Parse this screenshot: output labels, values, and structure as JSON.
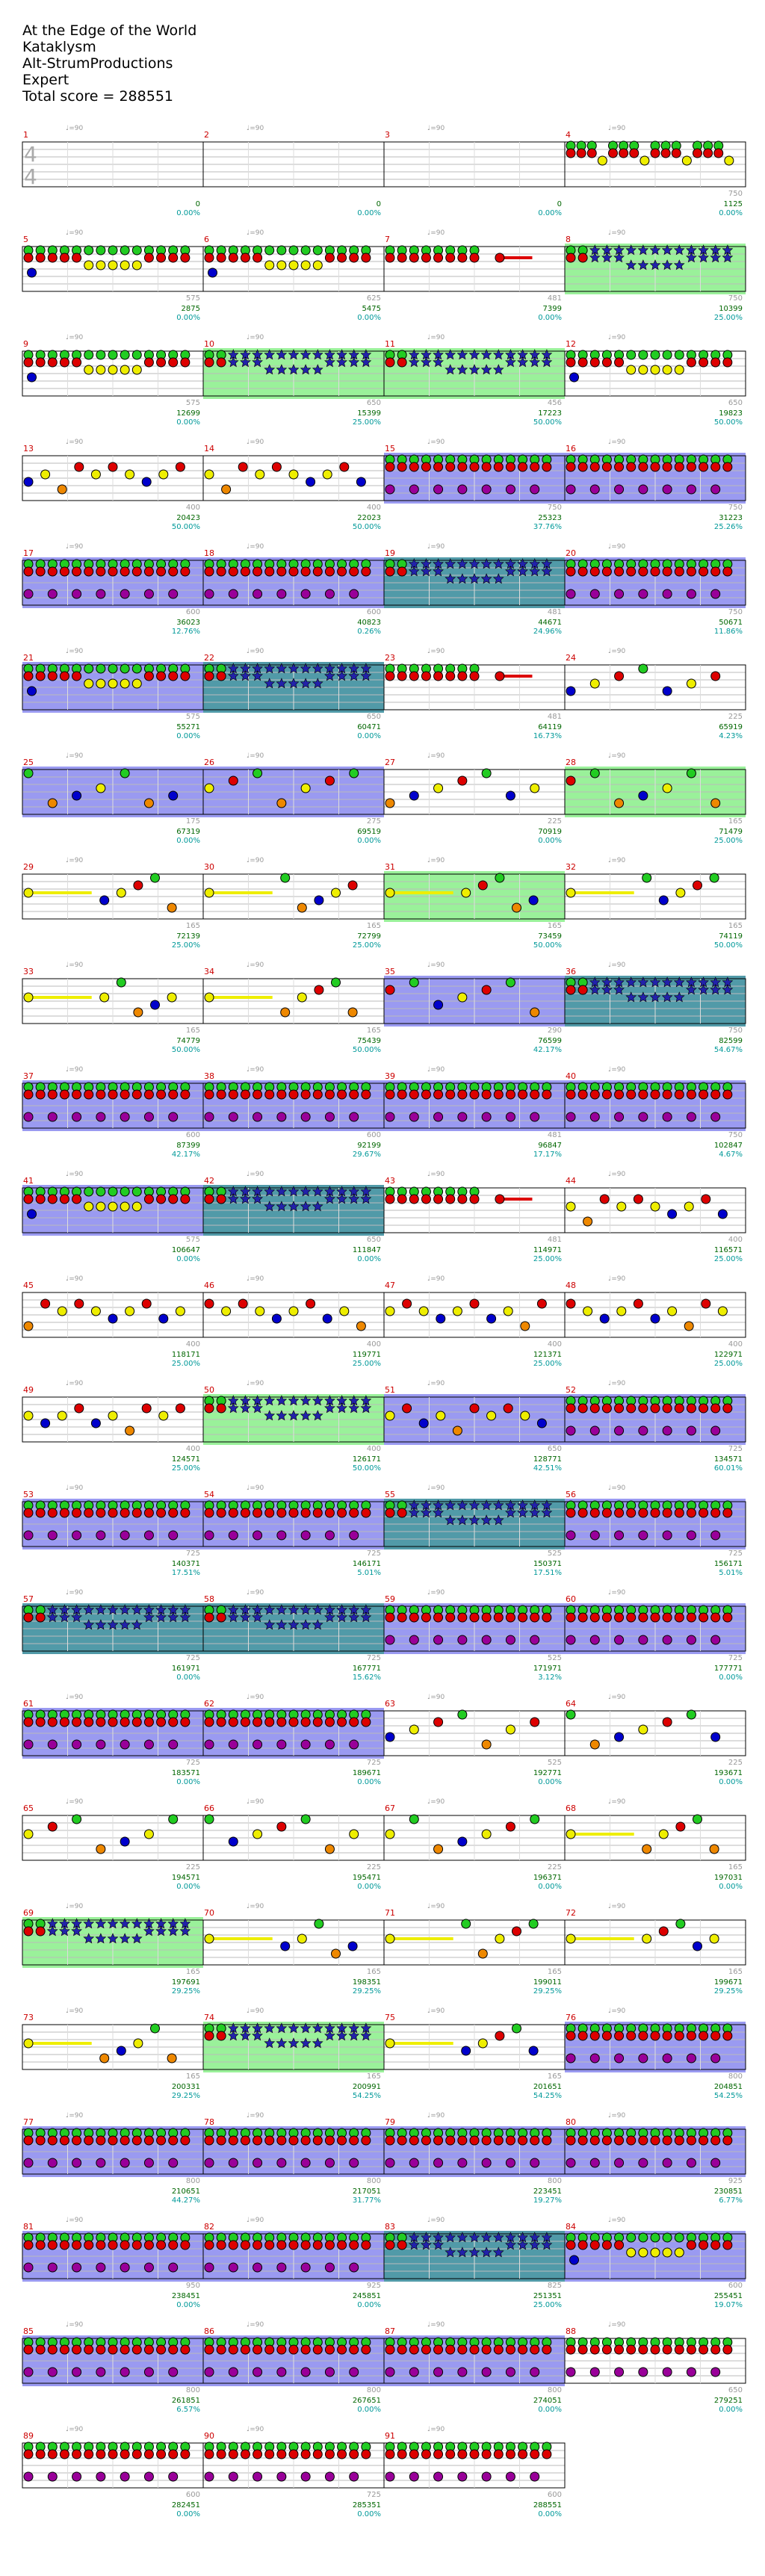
{
  "header": {
    "song": "At the Edge of the World",
    "artist": "Kataklysm",
    "charter": "Alt-StrumProductions",
    "difficulty": "Expert",
    "total_score_text": "Total score = 288551"
  },
  "colors": {
    "green": "#22cc22",
    "red": "#dd0000",
    "yellow": "#eeee00",
    "blue": "#0000cc",
    "orange": "#ee8800",
    "purple": "#990099",
    "star": "#2222aa",
    "sp_zone": "#88ee88",
    "solo_zone": "#8888ee",
    "overlap_zone": "#338899",
    "sustain": "#eeee00",
    "measure_num": "#cc0000",
    "score_text": "#006600",
    "percent_text": "#009999",
    "tempo_text": "#999999"
  },
  "time_signature": [
    "4",
    "4"
  ],
  "tempo_label": "♩=90",
  "rows": [
    {
      "measures": [
        {
          "num": "1",
          "score": "0",
          "pct": "0.00%",
          "bpm": "",
          "pattern": "empty"
        },
        {
          "num": "2",
          "score": "0",
          "pct": "0.00%",
          "bpm": "",
          "pattern": "empty"
        },
        {
          "num": "3",
          "score": "0",
          "pct": "0.00%",
          "bpm": "",
          "pattern": "empty"
        },
        {
          "num": "4",
          "score": "1125",
          "pct": "0.00%",
          "bpm": "750",
          "pattern": "intro"
        }
      ]
    },
    {
      "measures": [
        {
          "num": "5",
          "score": "2875",
          "pct": "0.00%",
          "bpm": "575",
          "pattern": "riff"
        },
        {
          "num": "6",
          "score": "5475",
          "pct": "0.00%",
          "bpm": "625",
          "pattern": "riff"
        },
        {
          "num": "7",
          "score": "7399",
          "pct": "0.00%",
          "bpm": "481",
          "pattern": "slide"
        },
        {
          "num": "8",
          "score": "10399",
          "pct": "25.00%",
          "bpm": "750",
          "pattern": "stars",
          "zone": "sp"
        }
      ]
    },
    {
      "measures": [
        {
          "num": "9",
          "score": "12699",
          "pct": "0.00%",
          "bpm": "575",
          "pattern": "riff"
        },
        {
          "num": "10",
          "score": "15399",
          "pct": "25.00%",
          "bpm": "650",
          "pattern": "stars",
          "zone": "sp"
        },
        {
          "num": "11",
          "score": "17223",
          "pct": "50.00%",
          "bpm": "456",
          "pattern": "stars",
          "zone": "sp"
        },
        {
          "num": "12",
          "score": "19823",
          "pct": "50.00%",
          "bpm": "650",
          "pattern": "riff"
        }
      ]
    },
    {
      "measures": [
        {
          "num": "13",
          "score": "20423",
          "pct": "50.00%",
          "bpm": "400",
          "pattern": "low"
        },
        {
          "num": "14",
          "score": "22023",
          "pct": "50.00%",
          "bpm": "400",
          "pattern": "low"
        },
        {
          "num": "15",
          "score": "25323",
          "pct": "37.76%",
          "bpm": "750",
          "pattern": "chords",
          "zone": "solo"
        },
        {
          "num": "16",
          "score": "31223",
          "pct": "25.26%",
          "bpm": "750",
          "pattern": "chords",
          "zone": "solo"
        }
      ]
    },
    {
      "measures": [
        {
          "num": "17",
          "score": "36023",
          "pct": "12.76%",
          "bpm": "600",
          "pattern": "chords",
          "zone": "solo"
        },
        {
          "num": "18",
          "score": "40823",
          "pct": "0.26%",
          "bpm": "600",
          "pattern": "chords",
          "zone": "solo"
        },
        {
          "num": "19",
          "score": "44671",
          "pct": "24.96%",
          "bpm": "481",
          "pattern": "stars",
          "zone": "overlap"
        },
        {
          "num": "20",
          "score": "50671",
          "pct": "11.86%",
          "bpm": "750",
          "pattern": "chords",
          "zone": "solo"
        }
      ]
    },
    {
      "measures": [
        {
          "num": "21",
          "score": "55271",
          "pct": "0.00%",
          "bpm": "575",
          "pattern": "riff",
          "zone": "solo"
        },
        {
          "num": "22",
          "score": "60471",
          "pct": "0.00%",
          "bpm": "650",
          "pattern": "stars",
          "zone": "overlap"
        },
        {
          "num": "23",
          "score": "64119",
          "pct": "16.73%",
          "bpm": "481",
          "pattern": "slide"
        },
        {
          "num": "24",
          "score": "65919",
          "pct": "4.23%",
          "bpm": "225",
          "pattern": "sparse"
        }
      ]
    },
    {
      "measures": [
        {
          "num": "25",
          "score": "67319",
          "pct": "0.00%",
          "bpm": "175",
          "pattern": "sparse",
          "zone": "solo"
        },
        {
          "num": "26",
          "score": "69519",
          "pct": "0.00%",
          "bpm": "275",
          "pattern": "sparse",
          "zone": "solo"
        },
        {
          "num": "27",
          "score": "70919",
          "pct": "0.00%",
          "bpm": "225",
          "pattern": "sparse"
        },
        {
          "num": "28",
          "score": "71479",
          "pct": "25.00%",
          "bpm": "165",
          "pattern": "sparse",
          "zone": "sp"
        }
      ]
    },
    {
      "measures": [
        {
          "num": "29",
          "score": "72139",
          "pct": "25.00%",
          "bpm": "165",
          "pattern": "sustain"
        },
        {
          "num": "30",
          "score": "72799",
          "pct": "25.00%",
          "bpm": "165",
          "pattern": "sustain"
        },
        {
          "num": "31",
          "score": "73459",
          "pct": "50.00%",
          "bpm": "165",
          "pattern": "sustain",
          "zone": "sp"
        },
        {
          "num": "32",
          "score": "74119",
          "pct": "50.00%",
          "bpm": "165",
          "pattern": "sustain"
        }
      ]
    },
    {
      "measures": [
        {
          "num": "33",
          "score": "74779",
          "pct": "50.00%",
          "bpm": "165",
          "pattern": "sustain"
        },
        {
          "num": "34",
          "score": "75439",
          "pct": "50.00%",
          "bpm": "165",
          "pattern": "sustain"
        },
        {
          "num": "35",
          "score": "76599",
          "pct": "42.17%",
          "bpm": "290",
          "pattern": "sparse",
          "zone": "solo"
        },
        {
          "num": "36",
          "score": "82599",
          "pct": "54.67%",
          "bpm": "750",
          "pattern": "stars",
          "zone": "overlap"
        }
      ]
    },
    {
      "measures": [
        {
          "num": "37",
          "score": "87399",
          "pct": "42.17%",
          "bpm": "600",
          "pattern": "chords",
          "zone": "solo"
        },
        {
          "num": "38",
          "score": "92199",
          "pct": "29.67%",
          "bpm": "600",
          "pattern": "chords",
          "zone": "solo"
        },
        {
          "num": "39",
          "score": "96847",
          "pct": "17.17%",
          "bpm": "481",
          "pattern": "chords",
          "zone": "solo"
        },
        {
          "num": "40",
          "score": "102847",
          "pct": "4.67%",
          "bpm": "750",
          "pattern": "chords",
          "zone": "solo"
        }
      ]
    },
    {
      "measures": [
        {
          "num": "41",
          "score": "106647",
          "pct": "0.00%",
          "bpm": "575",
          "pattern": "riff",
          "zone": "solo"
        },
        {
          "num": "42",
          "score": "111847",
          "pct": "0.00%",
          "bpm": "650",
          "pattern": "stars",
          "zone": "overlap"
        },
        {
          "num": "43",
          "score": "114971",
          "pct": "25.00%",
          "bpm": "481",
          "pattern": "slide"
        },
        {
          "num": "44",
          "score": "116571",
          "pct": "25.00%",
          "bpm": "400",
          "pattern": "low"
        }
      ]
    },
    {
      "measures": [
        {
          "num": "45",
          "score": "118171",
          "pct": "25.00%",
          "bpm": "400",
          "pattern": "low"
        },
        {
          "num": "46",
          "score": "119771",
          "pct": "25.00%",
          "bpm": "400",
          "pattern": "low"
        },
        {
          "num": "47",
          "score": "121371",
          "pct": "25.00%",
          "bpm": "400",
          "pattern": "low"
        },
        {
          "num": "48",
          "score": "122971",
          "pct": "25.00%",
          "bpm": "400",
          "pattern": "low"
        }
      ]
    },
    {
      "measures": [
        {
          "num": "49",
          "score": "124571",
          "pct": "25.00%",
          "bpm": "400",
          "pattern": "low"
        },
        {
          "num": "50",
          "score": "126171",
          "pct": "50.00%",
          "bpm": "400",
          "pattern": "stars",
          "zone": "sp"
        },
        {
          "num": "51",
          "score": "128771",
          "pct": "42.51%",
          "bpm": "650",
          "pattern": "low",
          "zone": "solo"
        },
        {
          "num": "52",
          "score": "134571",
          "pct": "60.01%",
          "bpm": "725",
          "pattern": "chords",
          "zone": "solo"
        }
      ]
    },
    {
      "measures": [
        {
          "num": "53",
          "score": "140371",
          "pct": "17.51%",
          "bpm": "725",
          "pattern": "chords",
          "zone": "solo"
        },
        {
          "num": "54",
          "score": "146171",
          "pct": "5.01%",
          "bpm": "725",
          "pattern": "chords",
          "zone": "solo"
        },
        {
          "num": "55",
          "score": "150371",
          "pct": "17.51%",
          "bpm": "525",
          "pattern": "stars",
          "zone": "overlap"
        },
        {
          "num": "56",
          "score": "156171",
          "pct": "5.01%",
          "bpm": "725",
          "pattern": "chords",
          "zone": "solo"
        }
      ]
    },
    {
      "measures": [
        {
          "num": "57",
          "score": "161971",
          "pct": "0.00%",
          "bpm": "725",
          "pattern": "stars",
          "zone": "overlap"
        },
        {
          "num": "58",
          "score": "167771",
          "pct": "15.62%",
          "bpm": "725",
          "pattern": "stars",
          "zone": "overlap"
        },
        {
          "num": "59",
          "score": "171971",
          "pct": "3.12%",
          "bpm": "525",
          "pattern": "chords",
          "zone": "solo"
        },
        {
          "num": "60",
          "score": "177771",
          "pct": "0.00%",
          "bpm": "725",
          "pattern": "chords",
          "zone": "solo"
        }
      ]
    },
    {
      "measures": [
        {
          "num": "61",
          "score": "183571",
          "pct": "0.00%",
          "bpm": "725",
          "pattern": "chords",
          "zone": "solo"
        },
        {
          "num": "62",
          "score": "189671",
          "pct": "0.00%",
          "bpm": "725",
          "pattern": "chords",
          "zone": "solo"
        },
        {
          "num": "63",
          "score": "192771",
          "pct": "0.00%",
          "bpm": "525",
          "pattern": "sparse"
        },
        {
          "num": "64",
          "score": "193671",
          "pct": "0.00%",
          "bpm": "225",
          "pattern": "sparse"
        }
      ]
    },
    {
      "measures": [
        {
          "num": "65",
          "score": "194571",
          "pct": "0.00%",
          "bpm": "225",
          "pattern": "sparse"
        },
        {
          "num": "66",
          "score": "195471",
          "pct": "0.00%",
          "bpm": "225",
          "pattern": "sparse"
        },
        {
          "num": "67",
          "score": "196371",
          "pct": "0.00%",
          "bpm": "225",
          "pattern": "sparse"
        },
        {
          "num": "68",
          "score": "197031",
          "pct": "0.00%",
          "bpm": "165",
          "pattern": "sustain"
        }
      ]
    },
    {
      "measures": [
        {
          "num": "69",
          "score": "197691",
          "pct": "29.25%",
          "bpm": "165",
          "pattern": "stars",
          "zone": "sp"
        },
        {
          "num": "70",
          "score": "198351",
          "pct": "29.25%",
          "bpm": "165",
          "pattern": "sustain"
        },
        {
          "num": "71",
          "score": "199011",
          "pct": "29.25%",
          "bpm": "165",
          "pattern": "sustain"
        },
        {
          "num": "72",
          "score": "199671",
          "pct": "29.25%",
          "bpm": "165",
          "pattern": "sustain"
        }
      ]
    },
    {
      "measures": [
        {
          "num": "73",
          "score": "200331",
          "pct": "29.25%",
          "bpm": "165",
          "pattern": "sustain"
        },
        {
          "num": "74",
          "score": "200991",
          "pct": "54.25%",
          "bpm": "165",
          "pattern": "stars",
          "zone": "sp"
        },
        {
          "num": "75",
          "score": "201651",
          "pct": "54.25%",
          "bpm": "165",
          "pattern": "sustain"
        },
        {
          "num": "76",
          "score": "204851",
          "pct": "54.25%",
          "bpm": "800",
          "pattern": "chords",
          "zone": "solo"
        }
      ]
    },
    {
      "measures": [
        {
          "num": "77",
          "score": "210651",
          "pct": "44.27%",
          "bpm": "800",
          "pattern": "chords",
          "zone": "solo"
        },
        {
          "num": "78",
          "score": "217051",
          "pct": "31.77%",
          "bpm": "800",
          "pattern": "chords",
          "zone": "solo"
        },
        {
          "num": "79",
          "score": "223451",
          "pct": "19.27%",
          "bpm": "800",
          "pattern": "chords",
          "zone": "solo"
        },
        {
          "num": "80",
          "score": "230851",
          "pct": "6.77%",
          "bpm": "925",
          "pattern": "chords",
          "zone": "solo"
        }
      ]
    },
    {
      "measures": [
        {
          "num": "81",
          "score": "238451",
          "pct": "0.00%",
          "bpm": "950",
          "pattern": "chords",
          "zone": "solo"
        },
        {
          "num": "82",
          "score": "245851",
          "pct": "0.00%",
          "bpm": "925",
          "pattern": "chords",
          "zone": "solo"
        },
        {
          "num": "83",
          "score": "251351",
          "pct": "25.00%",
          "bpm": "825",
          "pattern": "stars",
          "zone": "overlap"
        },
        {
          "num": "84",
          "score": "255451",
          "pct": "19.07%",
          "bpm": "600",
          "pattern": "riff",
          "zone": "solo"
        }
      ]
    },
    {
      "measures": [
        {
          "num": "85",
          "score": "261851",
          "pct": "6.57%",
          "bpm": "800",
          "pattern": "chords",
          "zone": "solo"
        },
        {
          "num": "86",
          "score": "267651",
          "pct": "0.00%",
          "bpm": "800",
          "pattern": "chords",
          "zone": "solo"
        },
        {
          "num": "87",
          "score": "274051",
          "pct": "0.00%",
          "bpm": "800",
          "pattern": "chords",
          "zone": "solo"
        },
        {
          "num": "88",
          "score": "279251",
          "pct": "0.00%",
          "bpm": "650",
          "pattern": "chords"
        }
      ]
    },
    {
      "measures": [
        {
          "num": "89",
          "score": "282451",
          "pct": "0.00%",
          "bpm": "600",
          "pattern": "chords"
        },
        {
          "num": "90",
          "score": "285351",
          "pct": "0.00%",
          "bpm": "725",
          "pattern": "chords"
        },
        {
          "num": "91",
          "score": "288551",
          "pct": "0.00%",
          "bpm": "600",
          "pattern": "chords"
        }
      ]
    }
  ]
}
